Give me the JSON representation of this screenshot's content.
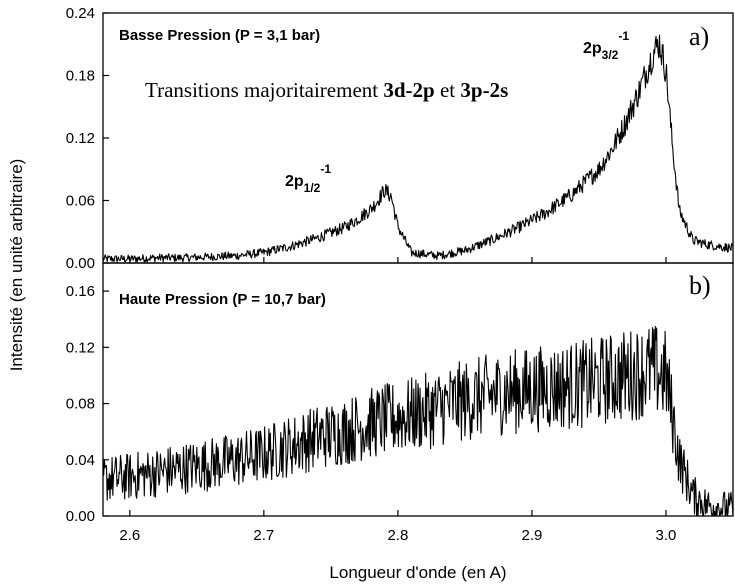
{
  "chart_data": {
    "type": "line",
    "xlabel": "Longueur d'onde (en A)",
    "ylabel": "Intensité (en unité arbitraire)",
    "x_range": [
      2.58,
      3.05
    ],
    "x_ticks": [
      "2.6",
      "2.7",
      "2.8",
      "2.9",
      "3.0"
    ],
    "x_tick_values": [
      2.6,
      2.7,
      2.8,
      2.9,
      3.0
    ],
    "panels": [
      {
        "letter": "a)",
        "title": "Basse Pression (P = 3,1 bar)",
        "ylim": [
          0,
          0.24
        ],
        "y_ticks": [
          "0.00",
          "0.06",
          "0.12",
          "0.18",
          "0.24"
        ],
        "y_tick_values": [
          0,
          0.06,
          0.12,
          0.18,
          0.24
        ],
        "annotation": {
          "prefix": "Transitions majoritairement ",
          "bold1": "3d-2p",
          "middle": " et ",
          "bold2": "3p-2s"
        },
        "peak_labels": [
          {
            "main": "2p",
            "sub": "1/2",
            "sup": "-1",
            "x": 2.785
          },
          {
            "main": "2p",
            "sub": "3/2",
            "sup": "-1",
            "x": 2.985
          }
        ],
        "series": {
          "x": [
            2.58,
            2.6,
            2.62,
            2.64,
            2.66,
            2.68,
            2.7,
            2.72,
            2.74,
            2.76,
            2.77,
            2.78,
            2.785,
            2.79,
            2.795,
            2.8,
            2.81,
            2.83,
            2.85,
            2.87,
            2.89,
            2.91,
            2.93,
            2.95,
            2.96,
            2.97,
            2.98,
            2.99,
            2.995,
            3.0,
            3.005,
            3.01,
            3.02,
            3.03,
            3.05
          ],
          "y": [
            0.004,
            0.004,
            0.005,
            0.005,
            0.006,
            0.007,
            0.01,
            0.016,
            0.024,
            0.034,
            0.042,
            0.052,
            0.06,
            0.07,
            0.064,
            0.035,
            0.01,
            0.007,
            0.012,
            0.022,
            0.034,
            0.048,
            0.066,
            0.09,
            0.11,
            0.135,
            0.165,
            0.2,
            0.212,
            0.185,
            0.11,
            0.05,
            0.022,
            0.018,
            0.014
          ],
          "noise": 0.006
        }
      },
      {
        "letter": "b)",
        "title": "Haute Pression (P = 10,7 bar)",
        "ylim": [
          0,
          0.18
        ],
        "y_ticks": [
          "0.00",
          "0.04",
          "0.08",
          "0.12",
          "0.16"
        ],
        "y_tick_values": [
          0,
          0.04,
          0.08,
          0.12,
          0.16
        ],
        "series": {
          "x": [
            2.58,
            2.6,
            2.62,
            2.64,
            2.66,
            2.68,
            2.7,
            2.72,
            2.74,
            2.76,
            2.78,
            2.8,
            2.82,
            2.84,
            2.86,
            2.88,
            2.9,
            2.92,
            2.94,
            2.96,
            2.98,
            2.99,
            3.0,
            3.005,
            3.01,
            3.02,
            3.03,
            3.05
          ],
          "y": [
            0.026,
            0.028,
            0.031,
            0.034,
            0.037,
            0.04,
            0.044,
            0.05,
            0.056,
            0.06,
            0.066,
            0.07,
            0.074,
            0.08,
            0.084,
            0.088,
            0.09,
            0.092,
            0.094,
            0.098,
            0.102,
            0.104,
            0.1,
            0.07,
            0.04,
            0.015,
            0.008,
            0.005
          ],
          "noise": 0.022
        }
      }
    ]
  }
}
